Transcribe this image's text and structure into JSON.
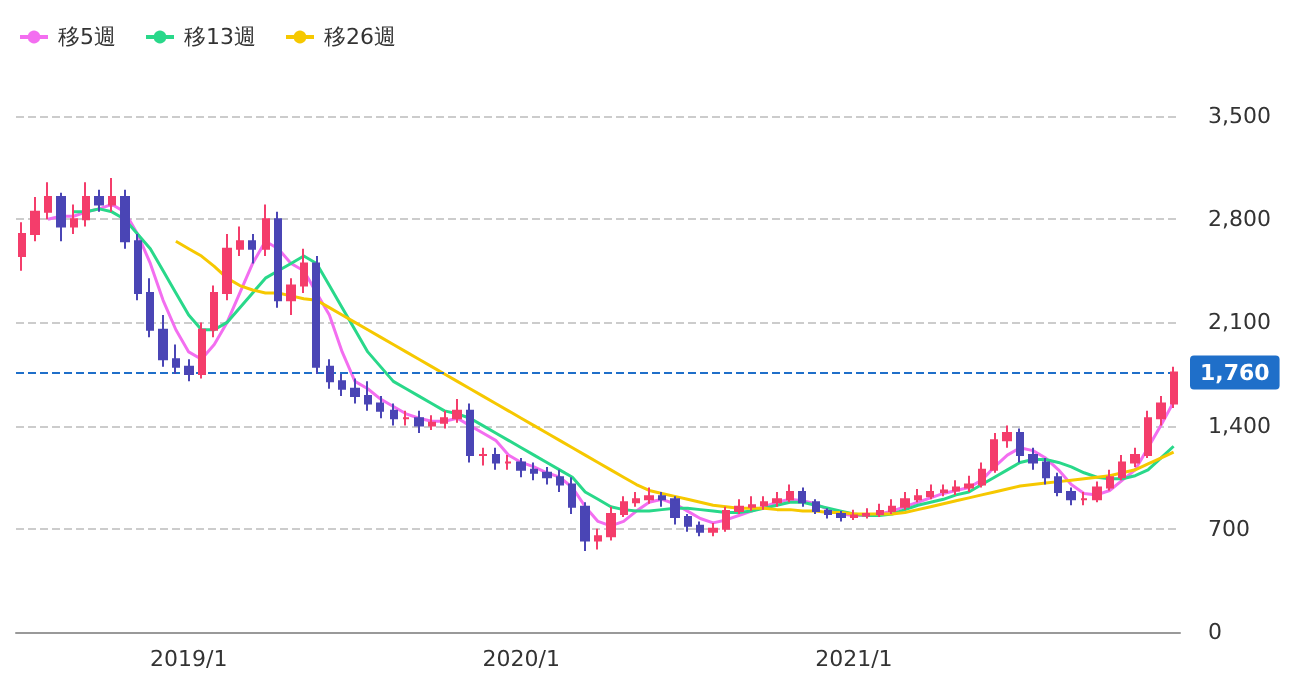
{
  "chart_data": {
    "type": "candlestick",
    "categories": [
      null,
      null,
      null,
      null,
      null,
      null,
      null,
      null,
      null,
      null,
      null,
      null,
      null,
      "2019/1",
      null,
      null,
      null,
      null,
      null,
      null,
      null,
      null,
      null,
      null,
      null,
      null,
      null,
      null,
      null,
      null,
      null,
      null,
      null,
      null,
      null,
      null,
      null,
      null,
      null,
      "2020/1",
      null,
      null,
      null,
      null,
      null,
      null,
      null,
      null,
      null,
      null,
      null,
      null,
      null,
      null,
      null,
      null,
      null,
      null,
      null,
      null,
      null,
      null,
      null,
      null,
      null,
      "2021/1",
      null,
      null,
      null,
      null,
      null,
      null,
      null,
      null,
      null,
      null,
      null,
      null,
      null,
      null,
      null,
      null,
      null,
      null,
      null,
      null,
      null,
      null,
      null,
      null,
      null
    ],
    "ohlc": [
      [
        2550,
        2780,
        2450,
        2700
      ],
      [
        2700,
        2950,
        2650,
        2850
      ],
      [
        2850,
        3050,
        2800,
        2950
      ],
      [
        2950,
        2980,
        2650,
        2750
      ],
      [
        2750,
        2900,
        2700,
        2800
      ],
      [
        2800,
        3050,
        2750,
        2950
      ],
      [
        2950,
        3000,
        2850,
        2900
      ],
      [
        2900,
        3080,
        2850,
        2950
      ],
      [
        2950,
        3000,
        2600,
        2650
      ],
      [
        2650,
        2700,
        2250,
        2300
      ],
      [
        2300,
        2400,
        2000,
        2050
      ],
      [
        2050,
        2150,
        1800,
        1850
      ],
      [
        1850,
        1950,
        1750,
        1800
      ],
      [
        1800,
        1850,
        1700,
        1750
      ],
      [
        1750,
        2100,
        1720,
        2050
      ],
      [
        2050,
        2350,
        2000,
        2300
      ],
      [
        2300,
        2700,
        2250,
        2600
      ],
      [
        2600,
        2750,
        2550,
        2650
      ],
      [
        2650,
        2700,
        2500,
        2600
      ],
      [
        2600,
        2900,
        2550,
        2800
      ],
      [
        2800,
        2850,
        2200,
        2250
      ],
      [
        2250,
        2400,
        2150,
        2350
      ],
      [
        2350,
        2600,
        2300,
        2500
      ],
      [
        2500,
        2550,
        1750,
        1800
      ],
      [
        1800,
        1850,
        1650,
        1700
      ],
      [
        1700,
        1750,
        1600,
        1650
      ],
      [
        1650,
        1720,
        1550,
        1600
      ],
      [
        1600,
        1700,
        1500,
        1550
      ],
      [
        1550,
        1600,
        1450,
        1500
      ],
      [
        1500,
        1550,
        1400,
        1450
      ],
      [
        1450,
        1500,
        1400,
        1450
      ],
      [
        1450,
        1500,
        1350,
        1400
      ],
      [
        1400,
        1470,
        1370,
        1420
      ],
      [
        1420,
        1500,
        1380,
        1450
      ],
      [
        1450,
        1580,
        1420,
        1500
      ],
      [
        1500,
        1550,
        1150,
        1200
      ],
      [
        1200,
        1250,
        1130,
        1200
      ],
      [
        1200,
        1250,
        1100,
        1150
      ],
      [
        1150,
        1200,
        1100,
        1150
      ],
      [
        1150,
        1180,
        1050,
        1100
      ],
      [
        1100,
        1150,
        1030,
        1080
      ],
      [
        1080,
        1120,
        1000,
        1050
      ],
      [
        1050,
        1100,
        950,
        1000
      ],
      [
        1000,
        1050,
        800,
        850
      ],
      [
        850,
        880,
        550,
        620
      ],
      [
        620,
        700,
        560,
        650
      ],
      [
        650,
        850,
        620,
        800
      ],
      [
        800,
        920,
        780,
        880
      ],
      [
        880,
        950,
        850,
        900
      ],
      [
        900,
        980,
        870,
        920
      ],
      [
        920,
        950,
        850,
        900
      ],
      [
        900,
        920,
        730,
        780
      ],
      [
        780,
        800,
        680,
        720
      ],
      [
        720,
        750,
        650,
        680
      ],
      [
        680,
        740,
        650,
        700
      ],
      [
        700,
        850,
        680,
        820
      ],
      [
        820,
        900,
        800,
        850
      ],
      [
        850,
        920,
        820,
        860
      ],
      [
        860,
        920,
        830,
        880
      ],
      [
        880,
        950,
        850,
        900
      ],
      [
        900,
        1000,
        880,
        950
      ],
      [
        950,
        980,
        850,
        880
      ],
      [
        880,
        900,
        800,
        820
      ],
      [
        820,
        840,
        770,
        800
      ],
      [
        800,
        820,
        750,
        780
      ],
      [
        780,
        830,
        760,
        790
      ],
      [
        790,
        840,
        770,
        800
      ],
      [
        800,
        870,
        780,
        820
      ],
      [
        820,
        900,
        800,
        850
      ],
      [
        850,
        950,
        830,
        900
      ],
      [
        900,
        970,
        880,
        920
      ],
      [
        920,
        1000,
        900,
        950
      ],
      [
        950,
        1000,
        920,
        960
      ],
      [
        960,
        1030,
        930,
        980
      ],
      [
        980,
        1060,
        950,
        1000
      ],
      [
        1000,
        1150,
        980,
        1100
      ],
      [
        1100,
        1350,
        1080,
        1300
      ],
      [
        1300,
        1400,
        1250,
        1350
      ],
      [
        1350,
        1380,
        1150,
        1200
      ],
      [
        1200,
        1250,
        1100,
        1150
      ],
      [
        1150,
        1180,
        1000,
        1050
      ],
      [
        1050,
        1080,
        920,
        950
      ],
      [
        950,
        980,
        860,
        900
      ],
      [
        900,
        950,
        860,
        900
      ],
      [
        900,
        1020,
        880,
        980
      ],
      [
        980,
        1100,
        960,
        1050
      ],
      [
        1050,
        1200,
        1030,
        1150
      ],
      [
        1150,
        1250,
        1120,
        1200
      ],
      [
        1200,
        1500,
        1180,
        1450
      ],
      [
        1450,
        1600,
        1400,
        1550
      ],
      [
        1550,
        1800,
        1520,
        1760
      ]
    ],
    "series": [
      {
        "name": "移5週",
        "type": "line",
        "color": "#f36ef0",
        "values": [
          null,
          null,
          2800,
          2820,
          2820,
          2850,
          2870,
          2900,
          2850,
          2700,
          2500,
          2250,
          2050,
          1900,
          1850,
          1950,
          2100,
          2300,
          2500,
          2650,
          2600,
          2500,
          2450,
          2300,
          2150,
          1900,
          1700,
          1650,
          1580,
          1530,
          1480,
          1450,
          1430,
          1430,
          1450,
          1400,
          1350,
          1300,
          1200,
          1150,
          1120,
          1080,
          1050,
          980,
          850,
          750,
          720,
          750,
          820,
          880,
          900,
          870,
          820,
          770,
          740,
          760,
          790,
          820,
          850,
          880,
          900,
          890,
          870,
          830,
          800,
          790,
          790,
          800,
          820,
          850,
          880,
          910,
          940,
          960,
          980,
          1030,
          1120,
          1200,
          1250,
          1230,
          1180,
          1100,
          1000,
          940,
          930,
          960,
          1030,
          1100,
          1250,
          1400,
          1560
        ]
      },
      {
        "name": "移13週",
        "type": "line",
        "color": "#29d88a",
        "values": [
          null,
          null,
          null,
          null,
          2850,
          2850,
          2870,
          2850,
          2800,
          2700,
          2600,
          2450,
          2300,
          2150,
          2050,
          2050,
          2100,
          2200,
          2300,
          2400,
          2450,
          2500,
          2550,
          2500,
          2350,
          2200,
          2050,
          1900,
          1800,
          1700,
          1650,
          1600,
          1550,
          1500,
          1480,
          1450,
          1400,
          1350,
          1300,
          1250,
          1200,
          1150,
          1100,
          1050,
          950,
          900,
          850,
          830,
          820,
          820,
          830,
          840,
          840,
          830,
          820,
          810,
          810,
          820,
          840,
          860,
          880,
          880,
          860,
          840,
          820,
          800,
          790,
          790,
          800,
          830,
          860,
          880,
          900,
          930,
          950,
          1000,
          1050,
          1100,
          1150,
          1170,
          1170,
          1150,
          1120,
          1080,
          1050,
          1040,
          1040,
          1060,
          1100,
          1180,
          1260
        ]
      },
      {
        "name": "移26週",
        "type": "line",
        "color": "#f6c800",
        "values": [
          null,
          null,
          null,
          null,
          null,
          null,
          null,
          null,
          null,
          null,
          null,
          null,
          2650,
          2600,
          2550,
          2480,
          2400,
          2350,
          2320,
          2300,
          2300,
          2280,
          2260,
          2250,
          2200,
          2150,
          2100,
          2050,
          2000,
          1950,
          1900,
          1850,
          1800,
          1750,
          1700,
          1650,
          1600,
          1550,
          1500,
          1450,
          1400,
          1350,
          1300,
          1250,
          1200,
          1150,
          1100,
          1050,
          1000,
          960,
          940,
          920,
          900,
          880,
          860,
          850,
          840,
          840,
          840,
          830,
          830,
          820,
          820,
          810,
          810,
          800,
          800,
          800,
          800,
          810,
          830,
          850,
          870,
          890,
          910,
          930,
          950,
          970,
          990,
          1000,
          1010,
          1020,
          1030,
          1040,
          1050,
          1060,
          1080,
          1100,
          1140,
          1180,
          1220
        ]
      }
    ],
    "ylim": [
      0,
      3500
    ],
    "yticks": [
      0,
      {
        "value": 700,
        "label": "700"
      },
      {
        "value": 1400,
        "label": "1,400"
      },
      {
        "value": 2100,
        "label": "2,100"
      },
      {
        "value": 2800,
        "label": "2,800"
      },
      {
        "value": 3500,
        "label": "3,500"
      }
    ],
    "ref_lines": [
      {
        "axis": "y",
        "value": 1760,
        "label": "1,760",
        "color": "#1f6fc9",
        "line_style": "dashed"
      }
    ],
    "grid": "y",
    "legend": "top left"
  }
}
